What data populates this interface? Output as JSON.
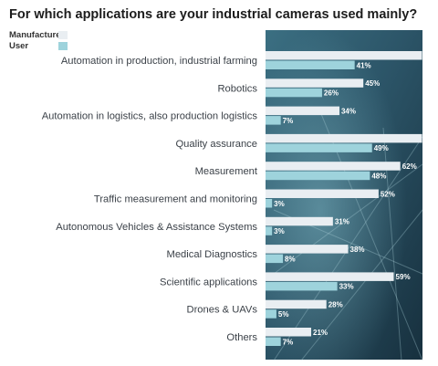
{
  "chart_data": {
    "type": "bar",
    "orientation": "horizontal",
    "title": "For which applications are your industrial cameras used mainly?",
    "categories": [
      "Automation in production, industrial farming",
      "Robotics",
      "Automation in logistics, also production logistics",
      "Quality assurance",
      "Measurement",
      "Traffic measurement and monitoring",
      "Autonomous Vehicles & Assistance Systems",
      "Medical Diagnostics",
      "Scientific applications",
      "Drones & UAVs",
      "Others"
    ],
    "series": [
      {
        "name": "Manufacturer",
        "color": "#e9eef2",
        "values": [
          72,
          45,
          34,
          72,
          62,
          52,
          31,
          38,
          59,
          28,
          21
        ]
      },
      {
        "name": "User",
        "color": "#9ed3dc",
        "values": [
          41,
          26,
          7,
          49,
          48,
          3,
          3,
          8,
          33,
          5,
          7
        ]
      }
    ],
    "value_suffix": "%",
    "xlim": [
      0,
      100
    ],
    "legend_position": "top-left",
    "grid": false,
    "xlabel": "",
    "ylabel": ""
  }
}
